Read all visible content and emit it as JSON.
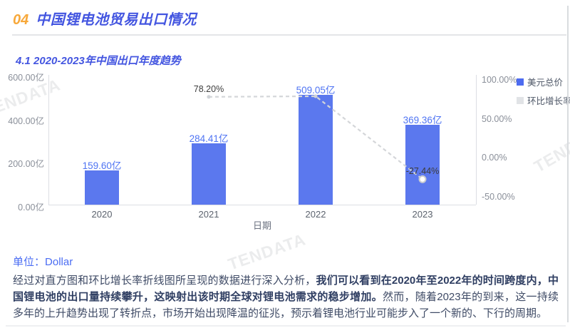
{
  "header": {
    "number": "04",
    "title": "中国锂电池贸易出口情况"
  },
  "section": {
    "subtitle": "4.1 2020-2023年中国出口年度趋势"
  },
  "chart_data": {
    "type": "bar+line",
    "title": "4.1 2020-2023年中国出口年度趋势",
    "categories": [
      "2020",
      "2021",
      "2022",
      "2023"
    ],
    "series": [
      {
        "name": "美元总价",
        "type": "bar",
        "values": [
          159.6,
          284.41,
          509.05,
          369.36
        ],
        "labels": [
          "159.60亿",
          "284.41亿",
          "509.05亿",
          "369.36亿"
        ],
        "color": "#5b78ee"
      },
      {
        "name": "环比增长率",
        "type": "line",
        "values": [
          null,
          78.2,
          79.0,
          -27.44
        ],
        "labels": [
          null,
          "78.20%",
          null,
          "-27.44%"
        ],
        "color": "#d4d6d9",
        "style": "dashed"
      }
    ],
    "xlabel": "日期",
    "left_axis": {
      "min": 0,
      "max": 600,
      "tick_labels": [
        "600.00亿",
        "400.00亿",
        "200.00亿",
        "0.00亿"
      ],
      "tick_values": [
        600,
        400,
        200,
        0
      ]
    },
    "right_axis": {
      "min": -50,
      "max": 100,
      "tick_labels": [
        "100.00%",
        "50.00%",
        "0.00%",
        "-50.00%"
      ],
      "tick_values": [
        100,
        50,
        0,
        -50
      ]
    },
    "legend": [
      {
        "label": "美元总价",
        "color": "#4d6bf0"
      },
      {
        "label": "环比增长率",
        "color": "#e1e3e6"
      }
    ],
    "grid": false,
    "legend_position": "top-right"
  },
  "unit": {
    "label": "单位：",
    "value": "Dollar"
  },
  "analysis": {
    "normal1": "经过对直方图和环比增长率折线图所呈现的数据进行深入分析，",
    "bold": "我们可以看到在2020年至2022年的时间跨度内，中国锂电池的出口量持续攀升，这映射出该时期全球对锂电池需求的稳步增加。",
    "normal2": "然而，随着2023年的到来，这一持续多年的上升趋势出现了转折点，市场开始出现降温的征兆，预示着锂电池行业可能步入了一个新的、下行的周期。"
  },
  "watermark": {
    "text": "TENDATA"
  },
  "colors": {
    "accent_blue": "#4355e0",
    "accent_orange": "#f7a83a",
    "bar_blue": "#5b78ee",
    "line_gray": "#d4d6d9",
    "unit_blue": "#4a6cf3"
  }
}
